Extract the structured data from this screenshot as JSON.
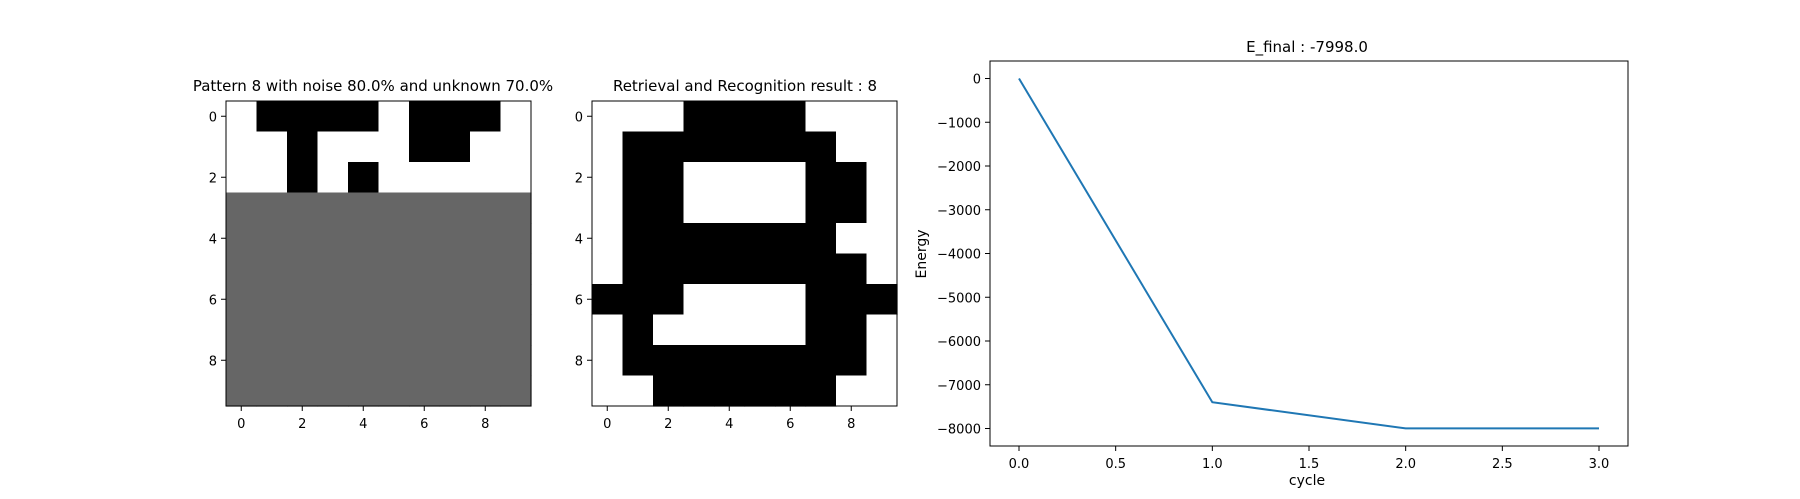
{
  "chart_data": [
    {
      "type": "heatmap",
      "title": "Pattern 8 with noise 80.0% and unknown 70.0%",
      "x_ticks": [
        "0",
        "2",
        "4",
        "6",
        "8"
      ],
      "y_ticks": [
        "0",
        "2",
        "4",
        "6",
        "8"
      ],
      "colormap": {
        "1": "#000000",
        "0": "#ffffff",
        "-1": "#666666"
      },
      "grid": [
        [
          0,
          1,
          1,
          1,
          1,
          0,
          1,
          1,
          1,
          0
        ],
        [
          0,
          0,
          1,
          0,
          0,
          0,
          1,
          1,
          0,
          0
        ],
        [
          0,
          0,
          1,
          0,
          1,
          0,
          0,
          0,
          0,
          0
        ],
        [
          -1,
          -1,
          -1,
          -1,
          -1,
          -1,
          -1,
          -1,
          -1,
          -1
        ],
        [
          -1,
          -1,
          -1,
          -1,
          -1,
          -1,
          -1,
          -1,
          -1,
          -1
        ],
        [
          -1,
          -1,
          -1,
          -1,
          -1,
          -1,
          -1,
          -1,
          -1,
          -1
        ],
        [
          -1,
          -1,
          -1,
          -1,
          -1,
          -1,
          -1,
          -1,
          -1,
          -1
        ],
        [
          -1,
          -1,
          -1,
          -1,
          -1,
          -1,
          -1,
          -1,
          -1,
          -1
        ],
        [
          -1,
          -1,
          -1,
          -1,
          -1,
          -1,
          -1,
          -1,
          -1,
          -1
        ],
        [
          -1,
          -1,
          -1,
          -1,
          -1,
          -1,
          -1,
          -1,
          -1,
          -1
        ]
      ]
    },
    {
      "type": "heatmap",
      "title": "Retrieval and Recognition result : 8",
      "x_ticks": [
        "0",
        "2",
        "4",
        "6",
        "8"
      ],
      "y_ticks": [
        "0",
        "2",
        "4",
        "6",
        "8"
      ],
      "colormap": {
        "1": "#000000",
        "0": "#ffffff"
      },
      "grid": [
        [
          0,
          0,
          0,
          1,
          1,
          1,
          1,
          0,
          0,
          0
        ],
        [
          0,
          1,
          1,
          1,
          1,
          1,
          1,
          1,
          0,
          0
        ],
        [
          0,
          1,
          1,
          0,
          0,
          0,
          0,
          1,
          1,
          0
        ],
        [
          0,
          1,
          1,
          0,
          0,
          0,
          0,
          1,
          1,
          0
        ],
        [
          0,
          1,
          1,
          1,
          1,
          1,
          1,
          1,
          0,
          0
        ],
        [
          0,
          1,
          1,
          1,
          1,
          1,
          1,
          1,
          1,
          0
        ],
        [
          1,
          1,
          1,
          0,
          0,
          0,
          0,
          1,
          1,
          1
        ],
        [
          0,
          1,
          0,
          0,
          0,
          0,
          0,
          1,
          1,
          0
        ],
        [
          0,
          1,
          1,
          1,
          1,
          1,
          1,
          1,
          1,
          0
        ],
        [
          0,
          0,
          1,
          1,
          1,
          1,
          1,
          1,
          0,
          0
        ]
      ]
    },
    {
      "type": "line",
      "title": "E_final : -7998.0",
      "xlabel": "cycle",
      "ylabel": "Energy",
      "x": [
        0.0,
        1.0,
        2.0,
        3.0
      ],
      "series": [
        {
          "values": [
            0,
            -7400,
            -7998,
            -7998
          ],
          "color": "#1f77b4"
        }
      ],
      "xlim": [
        -0.15,
        3.15
      ],
      "ylim": [
        -8400,
        400
      ],
      "x_ticks": [
        0.0,
        0.5,
        1.0,
        1.5,
        2.0,
        2.5,
        3.0
      ],
      "x_tick_labels": [
        "0.0",
        "0.5",
        "1.0",
        "1.5",
        "2.0",
        "2.5",
        "3.0"
      ],
      "y_ticks": [
        0,
        -1000,
        -2000,
        -3000,
        -4000,
        -5000,
        -6000,
        -7000,
        -8000
      ],
      "y_tick_labels": [
        "0",
        "−1000",
        "−2000",
        "−3000",
        "−4000",
        "−5000",
        "−6000",
        "−7000",
        "−8000"
      ]
    }
  ]
}
